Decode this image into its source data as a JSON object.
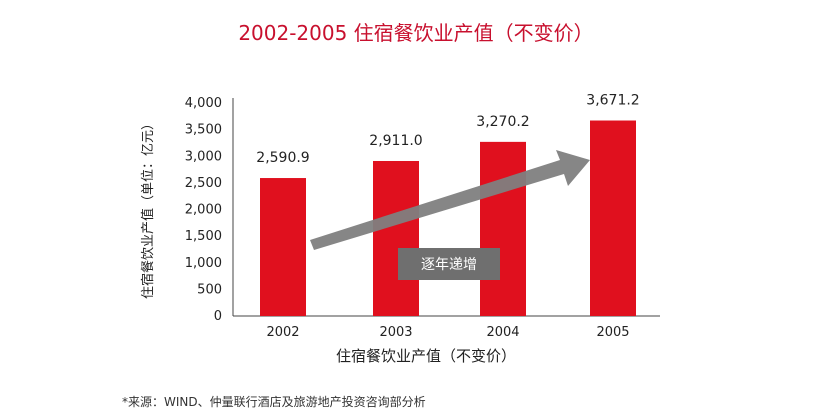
{
  "chart_data": {
    "type": "bar",
    "title": "2002-2005 住宿餐饮业产值（不变价）",
    "categories": [
      "2002",
      "2003",
      "2004",
      "2005"
    ],
    "values": [
      2590.9,
      2911.0,
      3270.2,
      3671.2
    ],
    "value_labels": [
      "2,590.9",
      "2,911.0",
      "3,270.2",
      "3,671.2"
    ],
    "xlabel": "住宿餐饮业产值（不变价）",
    "ylabel": "住宿餐饮业产值（单位：亿元）",
    "ylim": [
      0,
      4000
    ],
    "yticks": [
      0,
      500,
      1000,
      1500,
      2000,
      2500,
      3000,
      3500,
      4000
    ],
    "ytick_labels": [
      "0",
      "500",
      "1,000",
      "1,500",
      "2,000",
      "2,500",
      "3,000",
      "3,500",
      "4,000"
    ],
    "annotation": "逐年递增",
    "bar_color": "#e0101e",
    "trend_color": "#7f7f7f",
    "grid": false
  },
  "source_note": "*来源：WIND、仲量联行酒店及旅游地产投资咨询部分析"
}
